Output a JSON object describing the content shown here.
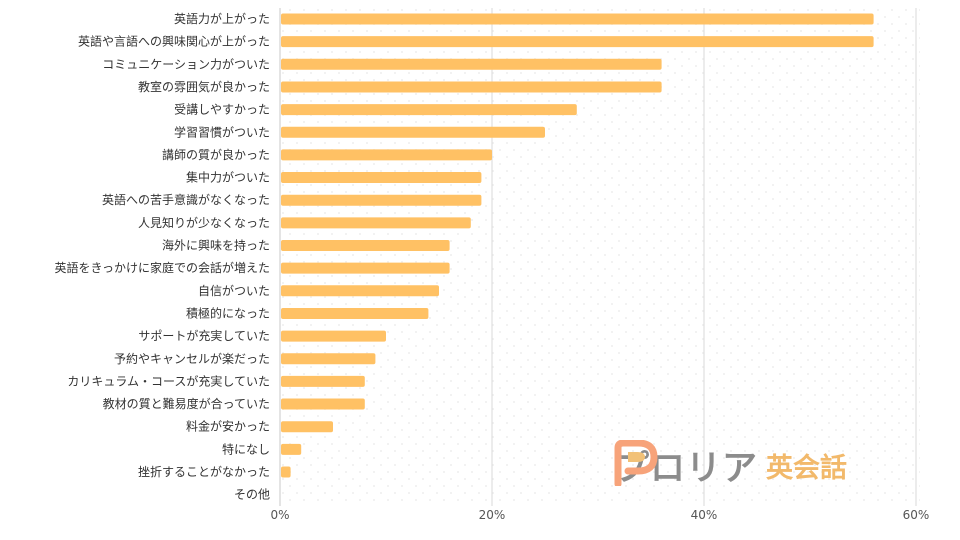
{
  "chart_data": {
    "type": "bar",
    "orientation": "horizontal",
    "title": "",
    "xlabel": "",
    "ylabel": "",
    "xlim": [
      0,
      60
    ],
    "x_ticks": [
      0,
      20,
      40,
      60
    ],
    "x_tick_format": "percent",
    "grid": "vertical",
    "bar_color": "#ffc164",
    "categories": [
      "英語力が上がった",
      "英語や言語への興味関心が上がった",
      "コミュニケーション力がついた",
      "教室の雰囲気が良かった",
      "受講しやすかった",
      "学習習慣がついた",
      "講師の質が良かった",
      "集中力がついた",
      "英語への苦手意識がなくなった",
      "人見知りが少なくなった",
      "海外に興味を持った",
      "英語をきっかけに家庭での会話が増えた",
      "自信がついた",
      "積極的になった",
      "サポートが充実していた",
      "予約やキャンセルが楽だった",
      "カリキュラム・コースが充実していた",
      "教材の質と難易度が合っていた",
      "料金が安かった",
      "特になし",
      "挫折することがなかった",
      "その他"
    ],
    "values": [
      56,
      56,
      36,
      36,
      28,
      25,
      20,
      19,
      19,
      18,
      16,
      16,
      15,
      14,
      10,
      9,
      8,
      8,
      5,
      2,
      1,
      0
    ]
  },
  "logo": {
    "name": "プロリア",
    "sub": "英会話",
    "mark_colors": [
      "#f7a37a",
      "#f2c177"
    ]
  }
}
